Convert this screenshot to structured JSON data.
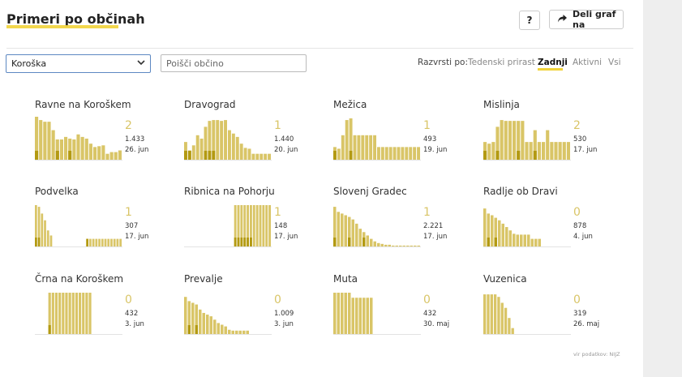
{
  "header": {
    "title": "Primeri po občinah",
    "help_label": "?",
    "share_label": "Deli graf na"
  },
  "filters": {
    "region_selected": "Koroška",
    "search_placeholder": "Poišči občino"
  },
  "sort": {
    "label": "Razvrsti po:",
    "options": [
      {
        "label": "Tedenski prirast",
        "active": false
      },
      {
        "label": "Zadnji",
        "active": true
      },
      {
        "label": "Aktivni",
        "active": false
      },
      {
        "label": "Vsi",
        "active": false
      }
    ]
  },
  "source": "vir podatkov: NIJZ",
  "colors": {
    "bar": "#d9c567",
    "bar_dark": "#b39a12",
    "accent": "#f1d33a"
  },
  "chart_data": [
    {
      "type": "bar",
      "title": "Ravne na Koroškem",
      "big": "2",
      "total": "1.433",
      "date": "26. jun",
      "values": [
        52,
        48,
        46,
        46,
        36,
        25,
        25,
        28,
        26,
        25,
        31,
        28,
        26,
        20,
        16,
        17,
        18,
        8,
        10,
        10,
        12
      ],
      "dark": [
        0,
        5,
        8
      ]
    },
    {
      "type": "bar",
      "title": "Dravograd",
      "big": "1",
      "total": "1.440",
      "date": "20. jun",
      "values": [
        22,
        12,
        18,
        30,
        26,
        40,
        47,
        48,
        48,
        47,
        48,
        36,
        32,
        28,
        20,
        15,
        14,
        8,
        8,
        8,
        8,
        8
      ],
      "dark": [
        0,
        1,
        5,
        6,
        7
      ]
    },
    {
      "type": "bar",
      "title": "Mežica",
      "big": "1",
      "total": "493",
      "date": "19. jun",
      "values": [
        16,
        14,
        30,
        48,
        50,
        30,
        30,
        30,
        30,
        30,
        30,
        16,
        16,
        16,
        16,
        16,
        16,
        16,
        16,
        16,
        16,
        16
      ],
      "dark": [
        0,
        4
      ]
    },
    {
      "type": "bar",
      "title": "Mislinja",
      "big": "2",
      "total": "530",
      "date": "17. jun",
      "values": [
        22,
        20,
        22,
        40,
        48,
        47,
        47,
        47,
        47,
        47,
        22,
        22,
        36,
        22,
        22,
        36,
        22,
        22,
        22,
        22,
        22
      ],
      "dark": [
        0,
        3,
        8,
        12
      ]
    },
    {
      "type": "bar",
      "title": "Podvelka",
      "big": "1",
      "total": "307",
      "date": "17. jun",
      "values": [
        50,
        48,
        40,
        32,
        20,
        14,
        0,
        0,
        0,
        0,
        0,
        0,
        0,
        0,
        0,
        0,
        0,
        10,
        10,
        10,
        10,
        10,
        10,
        10,
        10,
        10,
        10,
        10,
        10
      ],
      "dark": [
        0,
        1,
        17
      ]
    },
    {
      "type": "bar",
      "title": "Ribnica na Pohorju",
      "big": "1",
      "total": "148",
      "date": "17. jun",
      "values": [
        0,
        0,
        0,
        0,
        0,
        0,
        0,
        0,
        0,
        0,
        0,
        0,
        0,
        0,
        0,
        0,
        50,
        50,
        50,
        50,
        50,
        50,
        50,
        50,
        50,
        50,
        50,
        50
      ],
      "dark": [
        16,
        17,
        18,
        19,
        20,
        21
      ]
    },
    {
      "type": "bar",
      "title": "Slovenj Gradec",
      "big": "1",
      "total": "2.221",
      "date": "17. jun",
      "values": [
        48,
        42,
        40,
        38,
        36,
        33,
        28,
        22,
        18,
        14,
        10,
        7,
        5,
        4,
        3,
        3,
        2,
        2,
        2,
        2,
        2,
        2,
        2,
        2
      ],
      "dark": [
        0,
        4,
        8
      ]
    },
    {
      "type": "bar",
      "title": "Radlje ob Dravi",
      "big": "0",
      "total": "878",
      "date": "4. jun",
      "values": [
        46,
        40,
        38,
        35,
        32,
        28,
        24,
        20,
        16,
        15,
        15,
        15,
        15,
        10,
        10,
        10,
        0,
        0,
        0,
        0,
        0,
        0,
        0,
        0
      ],
      "dark": [
        1,
        3
      ]
    },
    {
      "type": "bar",
      "title": "Črna na Koroškem",
      "big": "0",
      "total": "432",
      "date": "3. jun",
      "values": [
        0,
        0,
        0,
        0,
        50,
        50,
        50,
        50,
        50,
        50,
        50,
        50,
        50,
        50,
        50,
        50,
        50,
        0,
        0,
        0,
        0,
        0,
        0,
        0,
        0,
        0
      ],
      "dark": [
        4
      ]
    },
    {
      "type": "bar",
      "title": "Prevalje",
      "big": "0",
      "total": "1.009",
      "date": "3. jun",
      "values": [
        45,
        40,
        38,
        36,
        30,
        26,
        24,
        22,
        18,
        14,
        12,
        10,
        6,
        5,
        5,
        5,
        5,
        5,
        0,
        0,
        0,
        0,
        0,
        0
      ],
      "dark": [
        1,
        3
      ]
    },
    {
      "type": "bar",
      "title": "Muta",
      "big": "0",
      "total": "432",
      "date": "30. maj",
      "values": [
        50,
        50,
        50,
        50,
        50,
        44,
        44,
        44,
        44,
        44,
        44,
        0,
        0,
        0,
        0,
        0,
        0,
        0,
        0,
        0,
        0,
        0,
        0,
        0
      ],
      "dark": []
    },
    {
      "type": "bar",
      "title": "Vuzenica",
      "big": "0",
      "total": "319",
      "date": "26. maj",
      "values": [
        48,
        48,
        48,
        48,
        45,
        38,
        32,
        20,
        8,
        0,
        0,
        0,
        0,
        0,
        0,
        0,
        0,
        0,
        0,
        0,
        0,
        0,
        0,
        0,
        0
      ],
      "dark": []
    }
  ]
}
